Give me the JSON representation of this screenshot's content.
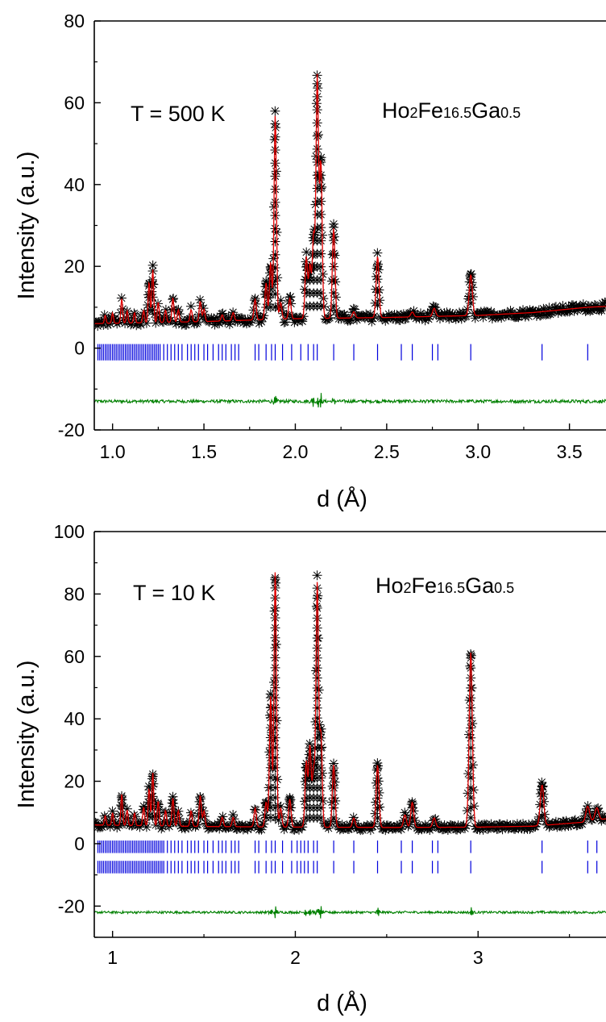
{
  "chart_data": [
    {
      "type": "scatter",
      "xlabel": "d (Å)",
      "ylabel": "Intensity (a.u.)",
      "xlim": [
        0.9,
        3.7
      ],
      "ylim": [
        -20,
        80
      ],
      "x_ticks": [
        "1.0",
        "1.5",
        "2.0",
        "2.5",
        "3.0",
        "3.5"
      ],
      "y_ticks": [
        "-20",
        "0",
        "20",
        "40",
        "60",
        "80"
      ],
      "annotations": {
        "temperature": "T = 500 K",
        "compound": {
          "parts": [
            "Ho",
            "2",
            "Fe",
            "16.5",
            "Ga",
            "0.5"
          ]
        }
      },
      "colors": {
        "observed": "#000000",
        "calculated": "#e00000",
        "reflections": "#0000dd",
        "difference": "#008000"
      },
      "background": [
        [
          0.9,
          6
        ],
        [
          1.5,
          6.5
        ],
        [
          2.0,
          7.2
        ],
        [
          2.5,
          7.5
        ],
        [
          3.0,
          8
        ],
        [
          3.3,
          8.7
        ],
        [
          3.6,
          10
        ],
        [
          3.7,
          10.2
        ]
      ],
      "peaks": [
        [
          0.96,
          2
        ],
        [
          1.0,
          2.5
        ],
        [
          1.05,
          6
        ],
        [
          1.08,
          3
        ],
        [
          1.12,
          2.5
        ],
        [
          1.17,
          3
        ],
        [
          1.2,
          10
        ],
        [
          1.22,
          13
        ],
        [
          1.25,
          5
        ],
        [
          1.29,
          3
        ],
        [
          1.33,
          6
        ],
        [
          1.36,
          3
        ],
        [
          1.43,
          3
        ],
        [
          1.48,
          5
        ],
        [
          1.5,
          3
        ],
        [
          1.6,
          1.5
        ],
        [
          1.66,
          2
        ],
        [
          1.78,
          5
        ],
        [
          1.84,
          9
        ],
        [
          1.865,
          14
        ],
        [
          1.89,
          50
        ],
        [
          1.92,
          4
        ],
        [
          1.97,
          5
        ],
        [
          2.06,
          15
        ],
        [
          2.08,
          13
        ],
        [
          2.1,
          20
        ],
        [
          2.12,
          59
        ],
        [
          2.14,
          38
        ],
        [
          2.21,
          22
        ],
        [
          2.32,
          1.5
        ],
        [
          2.45,
          15
        ],
        [
          2.64,
          1.2
        ],
        [
          2.76,
          2
        ],
        [
          2.96,
          10
        ]
      ],
      "reflections": [
        [
          0.92,
          0.93,
          0.94,
          0.95,
          0.96,
          0.97,
          0.98,
          0.99,
          1.0,
          1.01,
          1.02,
          1.03,
          1.04,
          1.05,
          1.06,
          1.07,
          1.08,
          1.09,
          1.1,
          1.11,
          1.12,
          1.13,
          1.14,
          1.15,
          1.16,
          1.17,
          1.18,
          1.19,
          1.2,
          1.21,
          1.22,
          1.23,
          1.24,
          1.25,
          1.26,
          1.28,
          1.3,
          1.32,
          1.34,
          1.36,
          1.38,
          1.41,
          1.43,
          1.45,
          1.47,
          1.5,
          1.52,
          1.55,
          1.58,
          1.6,
          1.62,
          1.65,
          1.67,
          1.69,
          1.78,
          1.8,
          1.84,
          1.87,
          1.89,
          1.93,
          1.98,
          2.03,
          2.07,
          2.1,
          2.12,
          2.21,
          2.32,
          2.45,
          2.58,
          2.64,
          2.75,
          2.78,
          2.96,
          3.35,
          3.6
        ]
      ],
      "reflection_offsets": [
        -1
      ],
      "difference_offset": -13
    },
    {
      "type": "scatter",
      "xlabel": "d (Å)",
      "ylabel": "Intensity (a.u.)",
      "xlim": [
        0.9,
        3.7
      ],
      "ylim": [
        -30,
        100
      ],
      "x_ticks": [
        "1",
        "2",
        "3"
      ],
      "y_ticks": [
        "-20",
        "0",
        "20",
        "40",
        "60",
        "80",
        "100"
      ],
      "annotations": {
        "temperature": "T = 10 K",
        "compound": {
          "parts": [
            "Ho",
            "2",
            "Fe",
            "16.5",
            "Ga",
            "0.5"
          ]
        }
      },
      "colors": {
        "observed": "#000000",
        "calculated": "#e00000",
        "reflections": "#0000dd",
        "difference": "#008000"
      },
      "background": [
        [
          0.9,
          6
        ],
        [
          1.5,
          5.5
        ],
        [
          2.0,
          5.3
        ],
        [
          2.5,
          5.2
        ],
        [
          3.0,
          5.3
        ],
        [
          3.3,
          5.6
        ],
        [
          3.6,
          7
        ],
        [
          3.7,
          8
        ]
      ],
      "peaks": [
        [
          0.96,
          3
        ],
        [
          1.0,
          4
        ],
        [
          1.05,
          10
        ],
        [
          1.08,
          5
        ],
        [
          1.12,
          4
        ],
        [
          1.17,
          6
        ],
        [
          1.2,
          12
        ],
        [
          1.22,
          17
        ],
        [
          1.25,
          8
        ],
        [
          1.29,
          5
        ],
        [
          1.33,
          9
        ],
        [
          1.36,
          5
        ],
        [
          1.43,
          5
        ],
        [
          1.48,
          10
        ],
        [
          1.5,
          5
        ],
        [
          1.6,
          3
        ],
        [
          1.66,
          3
        ],
        [
          1.78,
          6
        ],
        [
          1.84,
          8
        ],
        [
          1.865,
          42
        ],
        [
          1.89,
          82
        ],
        [
          1.92,
          6
        ],
        [
          1.97,
          9
        ],
        [
          2.06,
          21
        ],
        [
          2.08,
          26
        ],
        [
          2.1,
          18
        ],
        [
          2.12,
          78
        ],
        [
          2.14,
          30
        ],
        [
          2.21,
          20
        ],
        [
          2.32,
          3
        ],
        [
          2.45,
          20
        ],
        [
          2.6,
          4
        ],
        [
          2.64,
          8
        ],
        [
          2.76,
          3
        ],
        [
          2.96,
          56
        ],
        [
          3.35,
          13
        ],
        [
          3.6,
          5
        ],
        [
          3.65,
          4
        ]
      ],
      "reflections": [
        [
          0.92,
          0.93,
          0.94,
          0.95,
          0.96,
          0.97,
          0.98,
          0.99,
          1.0,
          1.01,
          1.02,
          1.03,
          1.04,
          1.05,
          1.06,
          1.07,
          1.08,
          1.09,
          1.1,
          1.11,
          1.12,
          1.13,
          1.14,
          1.15,
          1.16,
          1.17,
          1.18,
          1.19,
          1.2,
          1.21,
          1.22,
          1.23,
          1.24,
          1.25,
          1.26,
          1.27,
          1.28,
          1.3,
          1.32,
          1.34,
          1.36,
          1.38,
          1.41,
          1.43,
          1.45,
          1.47,
          1.5,
          1.52,
          1.55,
          1.58,
          1.6,
          1.62,
          1.65,
          1.67,
          1.69,
          1.78,
          1.8,
          1.84,
          1.87,
          1.89,
          1.93,
          1.98,
          2.01,
          2.03,
          2.05,
          2.07,
          2.1,
          2.12,
          2.21,
          2.32,
          2.45,
          2.58,
          2.64,
          2.75,
          2.78,
          2.96,
          3.35,
          3.6,
          3.65
        ],
        [
          0.92,
          0.93,
          0.94,
          0.95,
          0.96,
          0.97,
          0.98,
          0.99,
          1.0,
          1.01,
          1.02,
          1.03,
          1.04,
          1.05,
          1.06,
          1.07,
          1.08,
          1.09,
          1.1,
          1.11,
          1.12,
          1.13,
          1.14,
          1.15,
          1.16,
          1.17,
          1.18,
          1.19,
          1.2,
          1.21,
          1.22,
          1.23,
          1.24,
          1.25,
          1.26,
          1.27,
          1.28,
          1.3,
          1.32,
          1.34,
          1.36,
          1.38,
          1.41,
          1.43,
          1.45,
          1.47,
          1.5,
          1.52,
          1.55,
          1.58,
          1.6,
          1.62,
          1.65,
          1.67,
          1.69,
          1.78,
          1.8,
          1.84,
          1.87,
          1.89,
          1.93,
          1.98,
          2.01,
          2.03,
          2.05,
          2.07,
          2.1,
          2.12,
          2.21,
          2.32,
          2.45,
          2.58,
          2.64,
          2.75,
          2.78,
          2.96,
          3.35,
          3.6,
          3.65
        ]
      ],
      "reflection_offsets": [
        -1,
        -7.5
      ],
      "difference_offset": -22
    }
  ]
}
